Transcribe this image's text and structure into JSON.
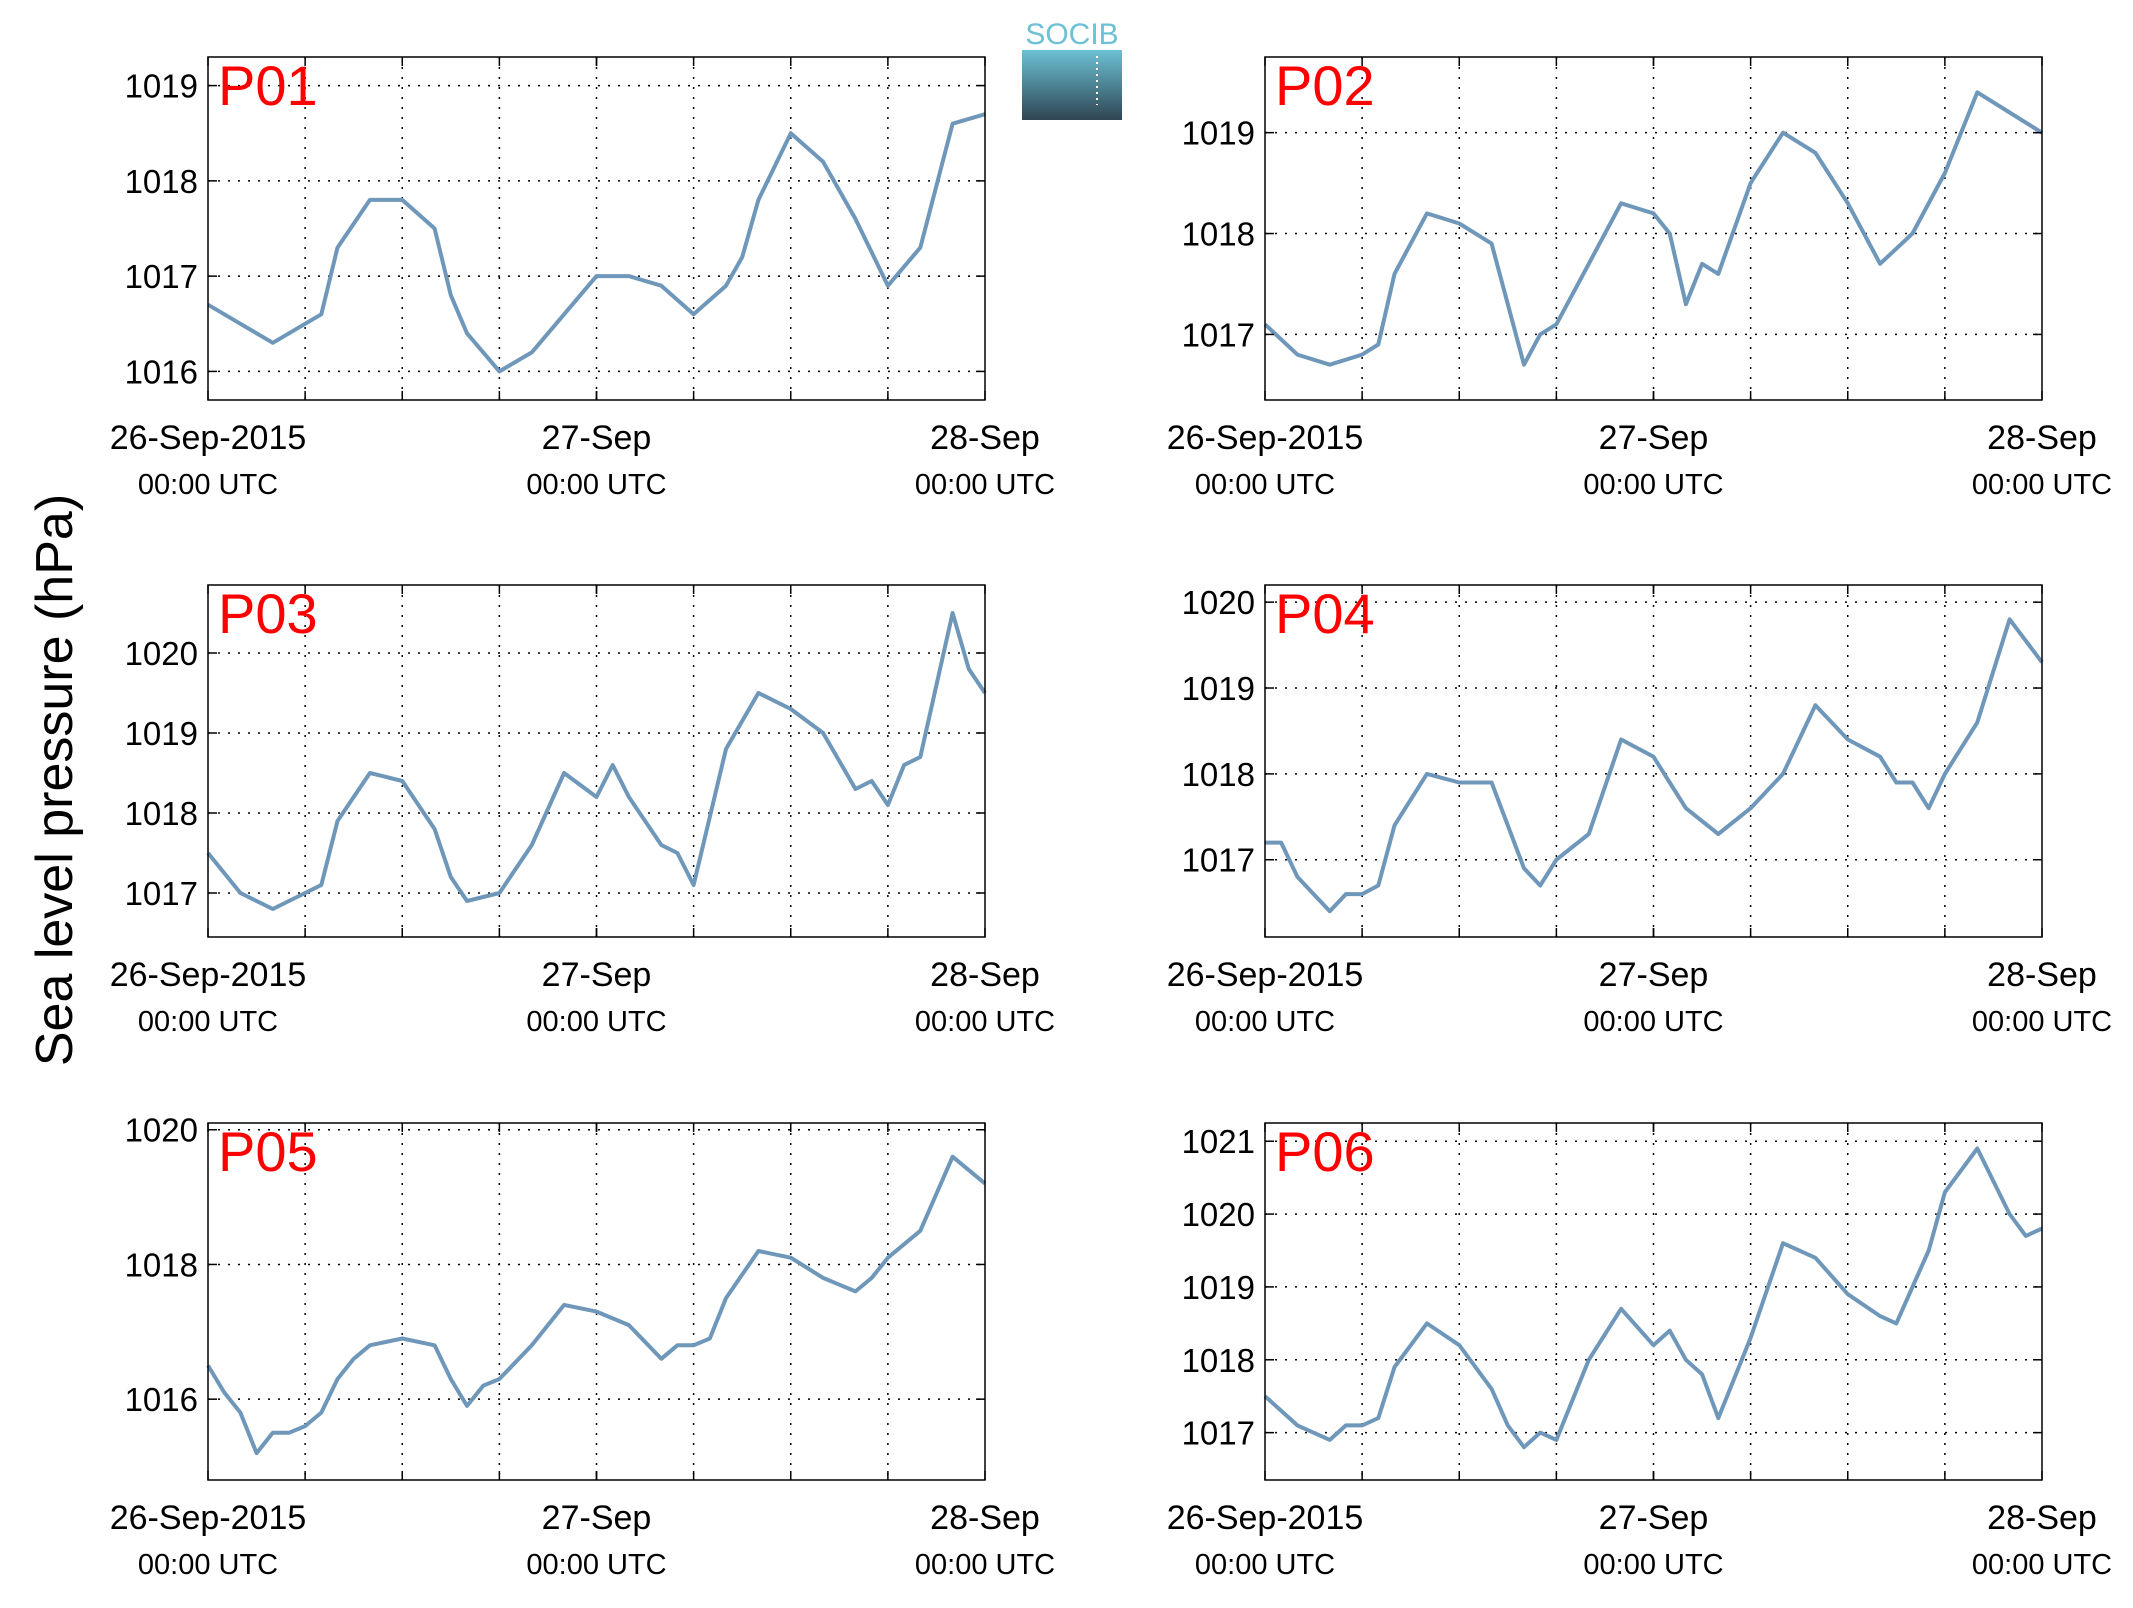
{
  "figure": {
    "ylabel": "Sea level pressure (hPa)",
    "logo_text": "SOCIB",
    "colors": {
      "line": "#6f97ba",
      "panel_label": "#ff0000",
      "logo_top": "#6cc1d4",
      "logo_bottom": "#2f4553"
    }
  },
  "chart_data": [
    {
      "type": "line",
      "title": "P01",
      "xlabel": "",
      "ylabel": "Sea level pressure (hPa)",
      "xlim": [
        "2015-09-26 00:00",
        "2015-09-28 00:00"
      ],
      "ylim": [
        1015.7,
        1019.3
      ],
      "yticks": [
        1016,
        1017,
        1018,
        1019
      ],
      "xticks": [
        {
          "date": "26-Sep-2015",
          "time": "00:00 UTC"
        },
        {
          "date": "27-Sep",
          "time": "00:00 UTC"
        },
        {
          "date": "28-Sep",
          "time": "00:00 UTC"
        }
      ],
      "grid": true,
      "series": [
        {
          "x_hours": [
            0,
            2,
            4,
            6,
            7,
            8,
            10,
            12,
            14,
            15,
            16,
            18,
            20,
            22,
            24,
            25,
            26,
            28,
            30,
            32,
            33,
            34,
            36,
            38,
            40,
            42,
            44,
            46,
            48
          ],
          "values": [
            1016.7,
            1016.5,
            1016.3,
            1016.5,
            1016.6,
            1017.3,
            1017.8,
            1017.8,
            1017.5,
            1016.8,
            1016.4,
            1016.0,
            1016.2,
            1016.6,
            1017.0,
            1017.0,
            1017.0,
            1016.9,
            1016.6,
            1016.9,
            1017.2,
            1017.8,
            1018.5,
            1018.2,
            1017.6,
            1016.9,
            1017.3,
            1018.6,
            1018.7
          ]
        }
      ]
    },
    {
      "type": "line",
      "title": "P02",
      "xlabel": "",
      "ylabel": "Sea level pressure (hPa)",
      "xlim": [
        "2015-09-26 00:00",
        "2015-09-28 00:00"
      ],
      "ylim": [
        1016.35,
        1019.75
      ],
      "yticks": [
        1017,
        1018,
        1019
      ],
      "xticks": [
        {
          "date": "26-Sep-2015",
          "time": "00:00 UTC"
        },
        {
          "date": "27-Sep",
          "time": "00:00 UTC"
        },
        {
          "date": "28-Sep",
          "time": "00:00 UTC"
        }
      ],
      "grid": true,
      "series": [
        {
          "x_hours": [
            0,
            2,
            4,
            6,
            7,
            8,
            10,
            12,
            14,
            15,
            16,
            17,
            18,
            20,
            22,
            24,
            25,
            26,
            27,
            28,
            30,
            32,
            34,
            36,
            38,
            40,
            42,
            44,
            46,
            48
          ],
          "values": [
            1017.1,
            1016.8,
            1016.7,
            1016.8,
            1016.9,
            1017.6,
            1018.2,
            1018.1,
            1017.9,
            1017.3,
            1016.7,
            1017.0,
            1017.1,
            1017.7,
            1018.3,
            1018.2,
            1018.0,
            1017.3,
            1017.7,
            1017.6,
            1018.5,
            1019.0,
            1018.8,
            1018.3,
            1017.7,
            1018.0,
            1018.6,
            1019.4,
            1019.2,
            1019.0
          ]
        }
      ]
    },
    {
      "type": "line",
      "title": "P03",
      "xlabel": "",
      "ylabel": "Sea level pressure (hPa)",
      "xlim": [
        "2015-09-26 00:00",
        "2015-09-28 00:00"
      ],
      "ylim": [
        1016.45,
        1020.85
      ],
      "yticks": [
        1017,
        1018,
        1019,
        1020
      ],
      "xticks": [
        {
          "date": "26-Sep-2015",
          "time": "00:00 UTC"
        },
        {
          "date": "27-Sep",
          "time": "00:00 UTC"
        },
        {
          "date": "28-Sep",
          "time": "00:00 UTC"
        }
      ],
      "grid": true,
      "series": [
        {
          "x_hours": [
            0,
            2,
            4,
            6,
            7,
            8,
            10,
            12,
            14,
            15,
            16,
            18,
            20,
            22,
            24,
            25,
            26,
            28,
            29,
            30,
            32,
            34,
            36,
            38,
            40,
            41,
            42,
            43,
            44,
            46,
            47,
            48
          ],
          "values": [
            1017.5,
            1017.0,
            1016.8,
            1017.0,
            1017.1,
            1017.9,
            1018.5,
            1018.4,
            1017.8,
            1017.2,
            1016.9,
            1017.0,
            1017.6,
            1018.5,
            1018.2,
            1018.6,
            1018.2,
            1017.6,
            1017.5,
            1017.1,
            1018.8,
            1019.5,
            1019.3,
            1019.0,
            1018.3,
            1018.4,
            1018.1,
            1018.6,
            1018.7,
            1020.5,
            1019.8,
            1019.5
          ]
        }
      ]
    },
    {
      "type": "line",
      "title": "P04",
      "xlabel": "",
      "ylabel": "Sea level pressure (hPa)",
      "xlim": [
        "2015-09-26 00:00",
        "2015-09-28 00:00"
      ],
      "ylim": [
        1016.1,
        1020.2
      ],
      "yticks": [
        1017,
        1018,
        1019,
        1020
      ],
      "xticks": [
        {
          "date": "26-Sep-2015",
          "time": "00:00 UTC"
        },
        {
          "date": "27-Sep",
          "time": "00:00 UTC"
        },
        {
          "date": "28-Sep",
          "time": "00:00 UTC"
        }
      ],
      "grid": true,
      "series": [
        {
          "x_hours": [
            0,
            1,
            2,
            3,
            4,
            5,
            6,
            7,
            8,
            10,
            12,
            14,
            15,
            16,
            17,
            18,
            20,
            22,
            24,
            25,
            26,
            28,
            30,
            32,
            34,
            36,
            38,
            39,
            40,
            41,
            42,
            44,
            46,
            48
          ],
          "values": [
            1017.2,
            1017.2,
            1016.8,
            1016.6,
            1016.4,
            1016.6,
            1016.6,
            1016.7,
            1017.4,
            1018.0,
            1017.9,
            1017.9,
            1017.4,
            1016.9,
            1016.7,
            1017.0,
            1017.3,
            1018.4,
            1018.2,
            1017.9,
            1017.6,
            1017.3,
            1017.6,
            1018.0,
            1018.8,
            1018.4,
            1018.2,
            1017.9,
            1017.9,
            1017.6,
            1018.0,
            1018.6,
            1019.8,
            1019.3
          ]
        }
      ]
    },
    {
      "type": "line",
      "title": "P05",
      "xlabel": "",
      "ylabel": "Sea level pressure (hPa)",
      "xlim": [
        "2015-09-26 00:00",
        "2015-09-28 00:00"
      ],
      "ylim": [
        1014.8,
        1020.1
      ],
      "yticks": [
        1016,
        1018,
        1020
      ],
      "xticks": [
        {
          "date": "26-Sep-2015",
          "time": "00:00 UTC"
        },
        {
          "date": "27-Sep",
          "time": "00:00 UTC"
        },
        {
          "date": "28-Sep",
          "time": "00:00 UTC"
        }
      ],
      "grid": true,
      "series": [
        {
          "x_hours": [
            0,
            1,
            2,
            3,
            4,
            5,
            6,
            7,
            8,
            9,
            10,
            12,
            14,
            15,
            16,
            17,
            18,
            20,
            22,
            24,
            26,
            28,
            29,
            30,
            31,
            32,
            34,
            36,
            38,
            39,
            40,
            41,
            42,
            44,
            46,
            48
          ],
          "values": [
            1016.5,
            1016.1,
            1015.8,
            1015.2,
            1015.5,
            1015.5,
            1015.6,
            1015.8,
            1016.3,
            1016.6,
            1016.8,
            1016.9,
            1016.8,
            1016.3,
            1015.9,
            1016.2,
            1016.3,
            1016.8,
            1017.4,
            1017.3,
            1017.1,
            1016.6,
            1016.8,
            1016.8,
            1016.9,
            1017.5,
            1018.2,
            1018.1,
            1017.8,
            1017.7,
            1017.6,
            1017.8,
            1018.1,
            1018.5,
            1019.6,
            1019.2
          ]
        }
      ]
    },
    {
      "type": "line",
      "title": "P06",
      "xlabel": "",
      "ylabel": "Sea level pressure (hPa)",
      "xlim": [
        "2015-09-26 00:00",
        "2015-09-28 00:00"
      ],
      "ylim": [
        1016.35,
        1021.25
      ],
      "yticks": [
        1017,
        1018,
        1019,
        1020,
        1021
      ],
      "xticks": [
        {
          "date": "26-Sep-2015",
          "time": "00:00 UTC"
        },
        {
          "date": "27-Sep",
          "time": "00:00 UTC"
        },
        {
          "date": "28-Sep",
          "time": "00:00 UTC"
        }
      ],
      "grid": true,
      "series": [
        {
          "x_hours": [
            0,
            2,
            4,
            5,
            6,
            7,
            8,
            10,
            12,
            14,
            15,
            16,
            17,
            18,
            20,
            22,
            24,
            25,
            26,
            27,
            28,
            30,
            32,
            34,
            36,
            38,
            39,
            40,
            41,
            42,
            44,
            46,
            47,
            48
          ],
          "values": [
            1017.5,
            1017.1,
            1016.9,
            1017.1,
            1017.1,
            1017.2,
            1017.9,
            1018.5,
            1018.2,
            1017.6,
            1017.1,
            1016.8,
            1017.0,
            1016.9,
            1018.0,
            1018.7,
            1018.2,
            1018.4,
            1018.0,
            1017.8,
            1017.2,
            1018.3,
            1019.6,
            1019.4,
            1018.9,
            1018.6,
            1018.5,
            1019.0,
            1019.5,
            1020.3,
            1020.9,
            1020.0,
            1019.7,
            1019.8
          ]
        }
      ]
    }
  ]
}
